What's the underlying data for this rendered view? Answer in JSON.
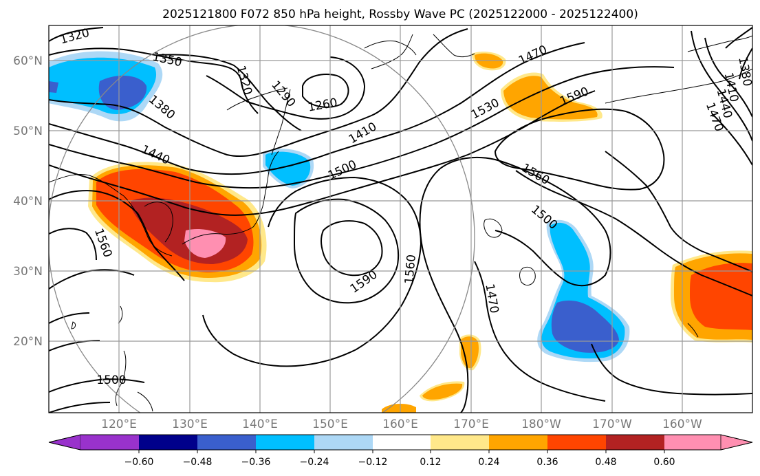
{
  "title": "2025121800 F072 850 hPa height, Rossby Wave PC (2025122000 - 2025122400)",
  "lon_labels": [
    "120°E",
    "130°E",
    "140°E",
    "150°E",
    "160°E",
    "170°E",
    "180°W",
    "170°W",
    "160°W"
  ],
  "lat_labels": [
    "60°N",
    "50°N",
    "40°N",
    "30°N",
    "20°N"
  ],
  "contour_labels": [
    "1320",
    "1350",
    "1320",
    "1290",
    "1260",
    "1380",
    "1410",
    "1440",
    "1470",
    "1530",
    "1590",
    "1500",
    "1560",
    "1500",
    "1560",
    "1590",
    "1560",
    "1470",
    "1500",
    "1380",
    "1410",
    "1440",
    "1470"
  ],
  "colorbar": {
    "ticks": [
      "−0.60",
      "−0.48",
      "−0.36",
      "−0.24",
      "−0.12",
      "0.12",
      "0.24",
      "0.36",
      "0.48",
      "0.60"
    ],
    "colors": [
      "#9932cc",
      "#00008b",
      "#3a5fcd",
      "#00bfff",
      "#add8f6",
      "#ffffff",
      "#ffe88a",
      "#ffa500",
      "#ff4500",
      "#b22222",
      "#ff8fb1"
    ]
  },
  "colors": {
    "blue_dark": "#3a5fcd",
    "blue_mid": "#00bfff",
    "blue_light": "#add8f6",
    "yellow": "#ffe88a",
    "orange": "#ffa500",
    "red_orange": "#ff4500",
    "dark_red": "#b22222",
    "pink": "#ff8fb1"
  }
}
